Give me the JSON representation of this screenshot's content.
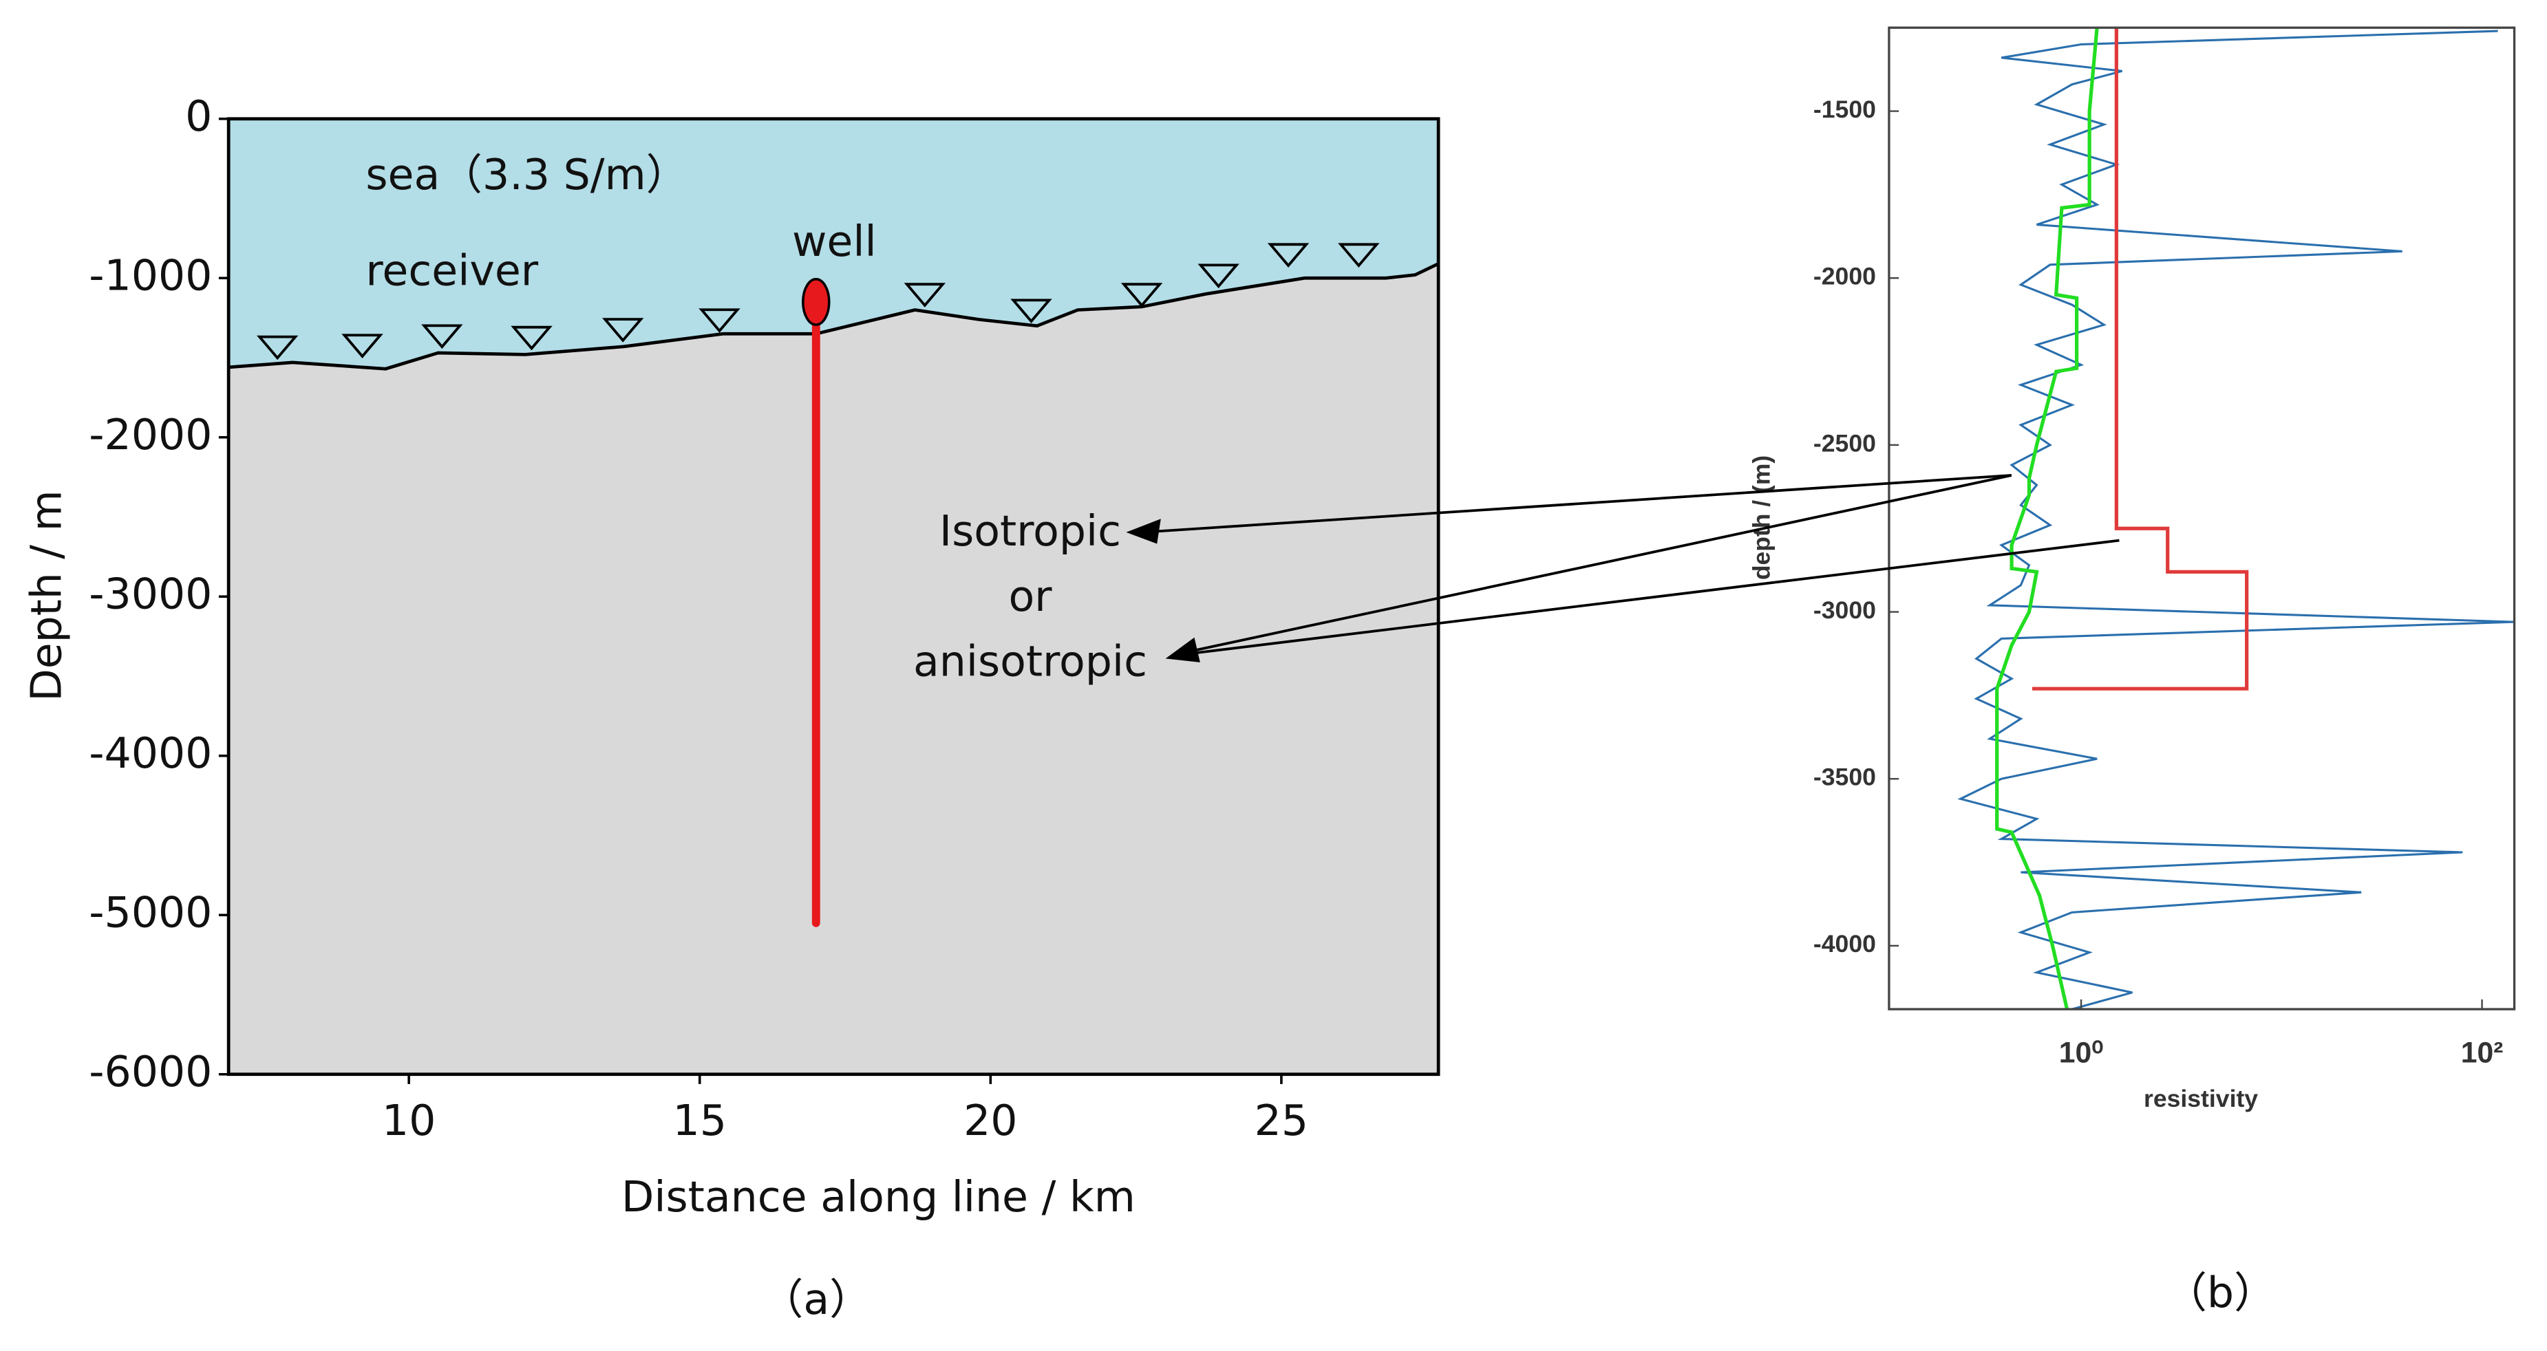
{
  "chart_data": [
    {
      "type": "section",
      "label": "（a）",
      "x_label": "Distance along line / km",
      "y_label": "Depth / m",
      "sea_label": "sea（3.3 S/m）",
      "receiver_label": "receiver",
      "well_label": "well",
      "annotations": [
        "Isotropic",
        "or",
        "anisotropic"
      ],
      "xlim": [
        6.9,
        27.7
      ],
      "ylim": [
        -6000,
        0
      ],
      "xticks": [
        10,
        15,
        20,
        25
      ],
      "yticks": [
        0,
        -1000,
        -2000,
        -3000,
        -4000,
        -5000,
        -6000
      ],
      "sea_color": "#b3dde7",
      "ground_color": "#d9d9d9",
      "well_color": "#e8191c",
      "seafloor": {
        "x": [
          6.9,
          8.0,
          9.6,
          10.5,
          12.0,
          13.7,
          15.4,
          17.0,
          18.7,
          19.8,
          20.8,
          21.5,
          22.6,
          23.7,
          25.4,
          26.8,
          27.3,
          27.7
        ],
        "y": [
          -1560,
          -1530,
          -1570,
          -1470,
          -1480,
          -1430,
          -1350,
          -1350,
          -1200,
          -1260,
          -1300,
          -1200,
          -1180,
          -1100,
          -1000,
          -1000,
          -980,
          -910
        ]
      },
      "receivers": {
        "x": [
          7.74,
          9.2,
          10.57,
          12.11,
          13.68,
          15.34,
          18.87,
          20.7,
          22.6,
          23.92,
          25.12,
          26.33
        ],
        "y": [
          -1430,
          -1420,
          -1360,
          -1370,
          -1320,
          -1260,
          -1100,
          -1200,
          -1100,
          -980,
          -850,
          -850
        ]
      },
      "well": {
        "x": 17,
        "top": -1150,
        "bottom": -5050
      }
    },
    {
      "type": "line",
      "label": "（b）",
      "x_label": "resistivity",
      "y_label": "depth / (m)",
      "xscale": "log",
      "xlim": [
        0.11,
        145
      ],
      "ylim": [
        -4190,
        -1250
      ],
      "xticks": [
        {
          "value": 1,
          "label": "10⁰"
        },
        {
          "value": 100,
          "label": "10²"
        }
      ],
      "yticks": [
        -1500,
        -2000,
        -2500,
        -3000,
        -3500,
        -4000
      ],
      "series": [
        {
          "color": "#2a6fad",
          "x": [
            120,
            1.0,
            0.4,
            1.6,
            0.9,
            0.6,
            1.3,
            0.7,
            1.5,
            0.8,
            1.2,
            0.6,
            40,
            0.7,
            0.5,
            0.9,
            1.3,
            0.6,
            1.0,
            0.5,
            0.9,
            0.5,
            0.7,
            0.45,
            0.6,
            0.5,
            0.7,
            0.4,
            0.55,
            0.5,
            0.35,
            145,
            0.4,
            0.3,
            0.45,
            0.3,
            0.5,
            0.35,
            1.2,
            0.4,
            0.25,
            0.6,
            0.4,
            80,
            0.5,
            25,
            0.9,
            0.5,
            1.1,
            0.6,
            1.8,
            0.9
          ],
          "y": [
            -1260,
            -1300,
            -1340,
            -1380,
            -1420,
            -1480,
            -1540,
            -1600,
            -1660,
            -1720,
            -1780,
            -1840,
            -1920,
            -1960,
            -2020,
            -2080,
            -2140,
            -2200,
            -2260,
            -2320,
            -2380,
            -2440,
            -2500,
            -2560,
            -2620,
            -2680,
            -2740,
            -2800,
            -2860,
            -2920,
            -2980,
            -3030,
            -3080,
            -3140,
            -3200,
            -3260,
            -3320,
            -3380,
            -3440,
            -3500,
            -3560,
            -3620,
            -3680,
            -3720,
            -3780,
            -3840,
            -3900,
            -3960,
            -4020,
            -4080,
            -4140,
            -4190
          ]
        },
        {
          "color": "#e03a3a",
          "x": [
            1.5,
            1.5,
            2.7,
            2.7,
            6.7,
            6.7,
            0.57
          ],
          "y": [
            -1250,
            -2750,
            -2750,
            -2880,
            -2880,
            -3230,
            -3230
          ]
        },
        {
          "color": "#22dd22",
          "x": [
            1.2,
            1.1,
            1.1,
            0.8,
            0.75,
            0.95,
            0.95,
            0.75,
            0.6,
            0.55,
            0.55,
            0.45,
            0.45,
            0.6,
            0.55,
            0.45,
            0.38,
            0.38,
            0.45,
            0.62,
            0.72,
            0.85
          ],
          "y": [
            -1250,
            -1500,
            -1780,
            -1790,
            -2050,
            -2060,
            -2270,
            -2280,
            -2500,
            -2600,
            -2650,
            -2800,
            -2870,
            -2880,
            -3000,
            -3100,
            -3230,
            -3650,
            -3660,
            -3850,
            -4000,
            -4190
          ]
        }
      ]
    }
  ]
}
